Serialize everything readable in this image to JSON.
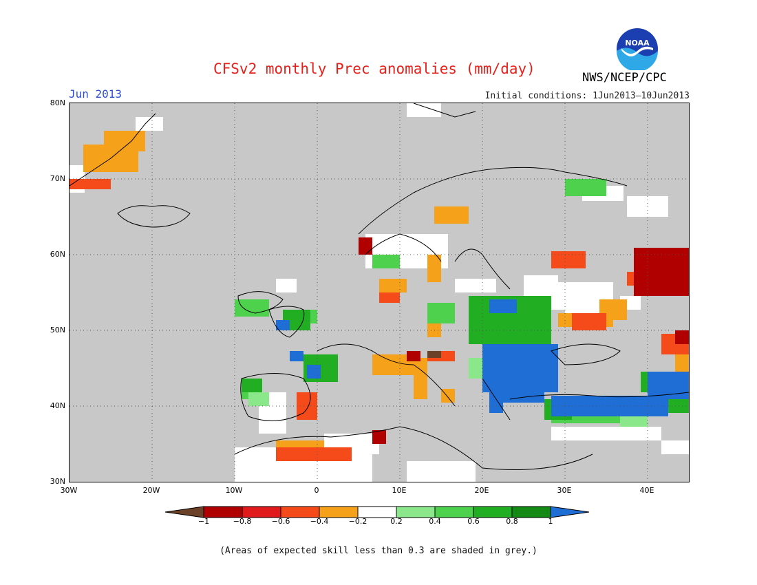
{
  "title": "CFSv2 monthly Prec anomalies (mm/day)",
  "month": "Jun 2013",
  "agency": "NWS/NCEP/CPC",
  "logo_text": "NOAA",
  "initial_conditions": "Initial conditions: 1Jun2013–10Jun2013",
  "y_axis_labels": [
    "80N",
    "70N",
    "60N",
    "50N",
    "40N",
    "30N"
  ],
  "x_axis_labels": [
    "30W",
    "20W",
    "10W",
    "0",
    "10E",
    "20E",
    "30E",
    "40E"
  ],
  "colors": {
    "title": "#e8201a",
    "month": "#2c4fd4",
    "no_skill": "#c8c8c8"
  },
  "legend": {
    "labels": [
      "−1",
      "−0.8",
      "−0.6",
      "−0.4",
      "−0.2",
      "0.2",
      "0.4",
      "0.6",
      "0.8",
      "1"
    ],
    "colors": [
      "#6b4227",
      "#b00000",
      "#e01a1a",
      "#f54a1a",
      "#f5a21a",
      "#ffffff",
      "#8ae88a",
      "#4ed24e",
      "#22ae22",
      "#148a14",
      "#1e6ed6"
    ]
  },
  "footnote": "(Areas of expected skill less than 0.3 are shaded in grey.)"
}
